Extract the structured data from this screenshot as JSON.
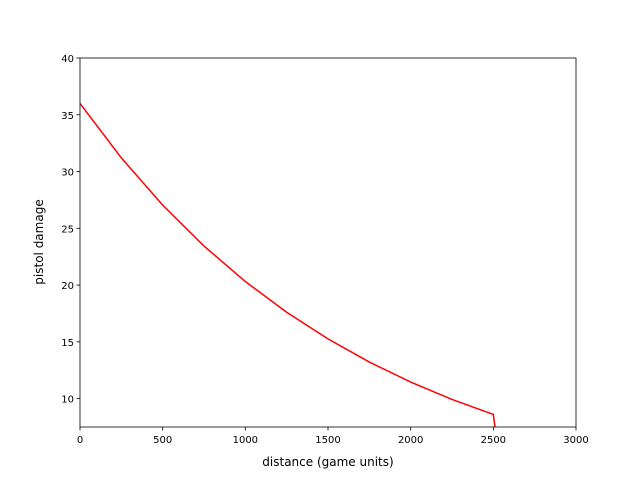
{
  "chart_data": {
    "type": "line",
    "x_label": "distance (game units)",
    "y_label": "pistol damage",
    "x": [
      0,
      250,
      500,
      750,
      1000,
      1250,
      1500,
      1750,
      2000,
      2250,
      2500,
      2510
    ],
    "series": [
      {
        "color": "#ff0000",
        "values": [
          36,
          31.2,
          27.04,
          23.44,
          20.31,
          17.61,
          15.26,
          13.22,
          11.46,
          9.93,
          8.61,
          7.5
        ]
      }
    ],
    "xlim": [
      0,
      3000
    ],
    "xticks": [
      0,
      500,
      1000,
      1500,
      2000,
      2500,
      3000
    ],
    "ylim": [
      7.5,
      40
    ],
    "yticks": [
      10,
      15,
      20,
      25,
      30,
      35,
      40
    ],
    "grid": false
  }
}
